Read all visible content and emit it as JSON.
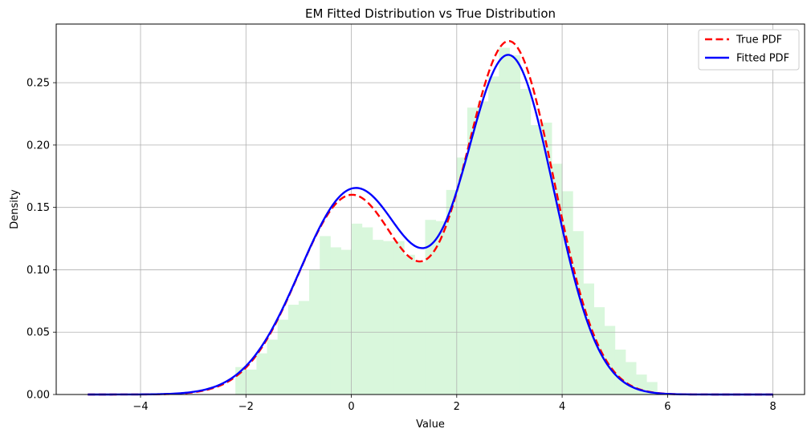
{
  "chart_data": {
    "type": "line",
    "title": "EM Fitted Distribution vs True Distribution",
    "xlabel": "Value",
    "ylabel": "Density",
    "xlim": [
      -5.6,
      8.6
    ],
    "ylim": [
      0,
      0.297
    ],
    "xticks": [
      -4,
      -2,
      0,
      2,
      4,
      6,
      8
    ],
    "yticks": [
      0.0,
      0.05,
      0.1,
      0.15,
      0.2,
      0.25
    ],
    "xtick_labels": [
      "−4",
      "−2",
      "0",
      "2",
      "4",
      "6",
      "8"
    ],
    "ytick_labels": [
      "0.00",
      "0.05",
      "0.10",
      "0.15",
      "0.20",
      "0.25"
    ],
    "grid": true,
    "legend_position": "top-right",
    "histogram": {
      "color": "#d9f7dc",
      "bins": [
        {
          "x0": -2.2,
          "x1": -2.0,
          "h": 0.022
        },
        {
          "x0": -2.0,
          "x1": -1.8,
          "h": 0.02
        },
        {
          "x0": -1.8,
          "x1": -1.6,
          "h": 0.033
        },
        {
          "x0": -1.6,
          "x1": -1.4,
          "h": 0.044
        },
        {
          "x0": -1.4,
          "x1": -1.2,
          "h": 0.06
        },
        {
          "x0": -1.2,
          "x1": -1.0,
          "h": 0.072
        },
        {
          "x0": -1.0,
          "x1": -0.8,
          "h": 0.075
        },
        {
          "x0": -0.8,
          "x1": -0.6,
          "h": 0.1
        },
        {
          "x0": -0.6,
          "x1": -0.4,
          "h": 0.127
        },
        {
          "x0": -0.4,
          "x1": -0.2,
          "h": 0.118
        },
        {
          "x0": -0.2,
          "x1": 0.0,
          "h": 0.116
        },
        {
          "x0": 0.0,
          "x1": 0.2,
          "h": 0.137
        },
        {
          "x0": 0.2,
          "x1": 0.4,
          "h": 0.134
        },
        {
          "x0": 0.4,
          "x1": 0.6,
          "h": 0.124
        },
        {
          "x0": 0.6,
          "x1": 0.8,
          "h": 0.123
        },
        {
          "x0": 0.8,
          "x1": 1.0,
          "h": 0.123
        },
        {
          "x0": 1.0,
          "x1": 1.2,
          "h": 0.112
        },
        {
          "x0": 1.2,
          "x1": 1.4,
          "h": 0.106
        },
        {
          "x0": 1.4,
          "x1": 1.6,
          "h": 0.14
        },
        {
          "x0": 1.6,
          "x1": 1.8,
          "h": 0.139
        },
        {
          "x0": 1.8,
          "x1": 2.0,
          "h": 0.164
        },
        {
          "x0": 2.0,
          "x1": 2.2,
          "h": 0.19
        },
        {
          "x0": 2.2,
          "x1": 2.4,
          "h": 0.23
        },
        {
          "x0": 2.4,
          "x1": 2.6,
          "h": 0.235
        },
        {
          "x0": 2.6,
          "x1": 2.8,
          "h": 0.255
        },
        {
          "x0": 2.8,
          "x1": 3.0,
          "h": 0.278
        },
        {
          "x0": 3.0,
          "x1": 3.2,
          "h": 0.272
        },
        {
          "x0": 3.2,
          "x1": 3.4,
          "h": 0.245
        },
        {
          "x0": 3.4,
          "x1": 3.6,
          "h": 0.216
        },
        {
          "x0": 3.6,
          "x1": 3.8,
          "h": 0.218
        },
        {
          "x0": 3.8,
          "x1": 4.0,
          "h": 0.185
        },
        {
          "x0": 4.0,
          "x1": 4.2,
          "h": 0.163
        },
        {
          "x0": 4.2,
          "x1": 4.4,
          "h": 0.131
        },
        {
          "x0": 4.4,
          "x1": 4.6,
          "h": 0.089
        },
        {
          "x0": 4.6,
          "x1": 4.8,
          "h": 0.07
        },
        {
          "x0": 4.8,
          "x1": 5.0,
          "h": 0.055
        },
        {
          "x0": 5.0,
          "x1": 5.2,
          "h": 0.036
        },
        {
          "x0": 5.2,
          "x1": 5.4,
          "h": 0.026
        },
        {
          "x0": 5.4,
          "x1": 5.6,
          "h": 0.016
        },
        {
          "x0": 5.6,
          "x1": 5.8,
          "h": 0.01
        }
      ]
    },
    "series": [
      {
        "name": "True PDF",
        "color": "#ff0000",
        "dash": "dashed",
        "mixture": {
          "weights": [
            0.4,
            0.6
          ],
          "means": [
            0.0,
            3.0
          ],
          "sds": [
            1.0,
            0.85
          ]
        },
        "x_range": [
          -5,
          8
        ]
      },
      {
        "name": "Fitted PDF",
        "color": "#0000ff",
        "dash": "solid",
        "mixture": {
          "weights": [
            0.43,
            0.57
          ],
          "means": [
            0.07,
            3.0
          ],
          "sds": [
            1.04,
            0.845
          ]
        },
        "x_range": [
          -5,
          8
        ]
      }
    ]
  }
}
